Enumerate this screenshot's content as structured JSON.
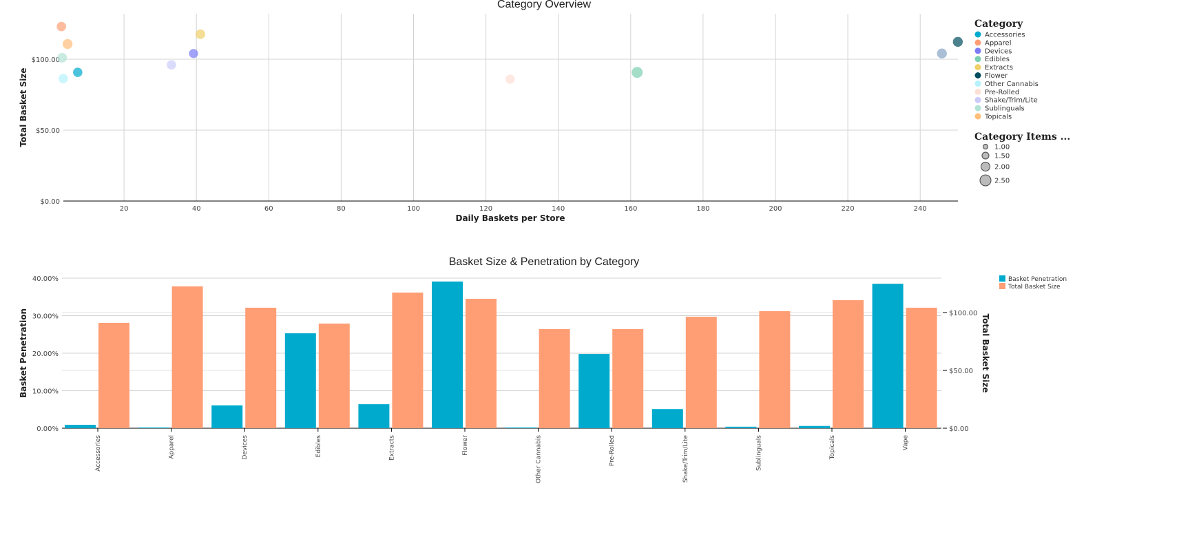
{
  "chart_data": [
    {
      "type": "scatter",
      "title": "Category Overview",
      "xlabel": "Daily Baskets per Store",
      "ylabel": "Total Basket Size",
      "xlim": [
        3,
        251
      ],
      "ylim": [
        0,
        132
      ],
      "xticks": [
        20,
        40,
        60,
        80,
        100,
        120,
        140,
        160,
        180,
        200,
        220,
        240
      ],
      "yticks": [
        {
          "v": 0,
          "label": "$0.00"
        },
        {
          "v": 50,
          "label": "$50.00"
        },
        {
          "v": 100,
          "label": "$100.00"
        }
      ],
      "grid": true,
      "legend_title": "Category",
      "size_legend_title": "Category Items ...",
      "size_legend": [
        "1.00",
        "1.50",
        "2.00",
        "2.50"
      ],
      "points": [
        {
          "category": "Accessories",
          "x": 7.2,
          "y": 90.7,
          "size": 1.4,
          "color": "#00aacd"
        },
        {
          "category": "Apparel",
          "x": 2.7,
          "y": 123,
          "size": 1.4,
          "color": "#ff9e75"
        },
        {
          "category": "Devices",
          "x": 39.2,
          "y": 104,
          "size": 1.3,
          "color": "#7b7bf5"
        },
        {
          "category": "Edibles",
          "x": 161.8,
          "y": 90.7,
          "size": 2.0,
          "color": "#7dcfb1"
        },
        {
          "category": "Extracts",
          "x": 41.1,
          "y": 117.6,
          "size": 1.5,
          "color": "#f0d06a"
        },
        {
          "category": "Flower",
          "x": 250.4,
          "y": 112.2,
          "size": 1.6,
          "color": "#004d5e"
        },
        {
          "category": "Other Cannabis",
          "x": 3.2,
          "y": 86.3,
          "size": 1.4,
          "color": "#b5f2fd"
        },
        {
          "category": "Pre-Rolled",
          "x": 126.7,
          "y": 85.9,
          "size": 1.4,
          "color": "#fde0d5"
        },
        {
          "category": "Shake/Trim/Lite",
          "x": 33.1,
          "y": 96,
          "size": 1.4,
          "color": "#ccccfa"
        },
        {
          "category": "Sublinguals",
          "x": 2.9,
          "y": 101,
          "size": 1.5,
          "color": "#b3e3d4"
        },
        {
          "category": "Topicals",
          "x": 4.4,
          "y": 110.7,
          "size": 1.6,
          "color": "#ffbe7a"
        },
        {
          "category": "Vape",
          "x": 246,
          "y": 104,
          "size": 1.6,
          "color": "#86a3c4"
        }
      ],
      "legend": [
        "Accessories",
        "Apparel",
        "Devices",
        "Edibles",
        "Extracts",
        "Flower",
        "Other Cannabis",
        "Pre-Rolled",
        "Shake/Trim/Lite",
        "Sublinguals",
        "Topicals"
      ]
    },
    {
      "type": "bar",
      "title": "Basket Size & Penetration by Category",
      "ylabel": "Basket Penetration",
      "y2label": "Total Basket Size",
      "ylim": [
        0,
        40
      ],
      "y2lim": [
        0,
        130
      ],
      "yticks": [
        {
          "v": 0,
          "label": "0.00%"
        },
        {
          "v": 10,
          "label": "10.00%"
        },
        {
          "v": 20,
          "label": "20.00%"
        },
        {
          "v": 30,
          "label": "30.00%"
        },
        {
          "v": 40,
          "label": "40.00%"
        }
      ],
      "y2ticks": [
        {
          "v": 0,
          "label": "$0.00"
        },
        {
          "v": 50,
          "label": "$50.00"
        },
        {
          "v": 100,
          "label": "$100.00"
        }
      ],
      "categories": [
        "Accessories",
        "Apparel",
        "Devices",
        "Edibles",
        "Extracts",
        "Flower",
        "Other Cannabis",
        "Pre-Rolled",
        "Shake/Trim/Lite",
        "Sublinguals",
        "Topicals",
        "Vape"
      ],
      "series": [
        {
          "name": "Basket Penetration",
          "axis": "left",
          "color": "#00aacd",
          "values": [
            0.9,
            0.2,
            6.1,
            25.3,
            6.4,
            39.1,
            0.2,
            19.8,
            5.1,
            0.4,
            0.6,
            38.5
          ]
        },
        {
          "name": "Total Basket Size",
          "axis": "right",
          "color": "#ff9e75",
          "values": [
            91.1,
            122.6,
            104.2,
            90.5,
            117.3,
            111.9,
            85.7,
            85.7,
            96.4,
            101.2,
            110.7,
            104.2
          ]
        }
      ],
      "legend_placement": "top-right"
    }
  ]
}
